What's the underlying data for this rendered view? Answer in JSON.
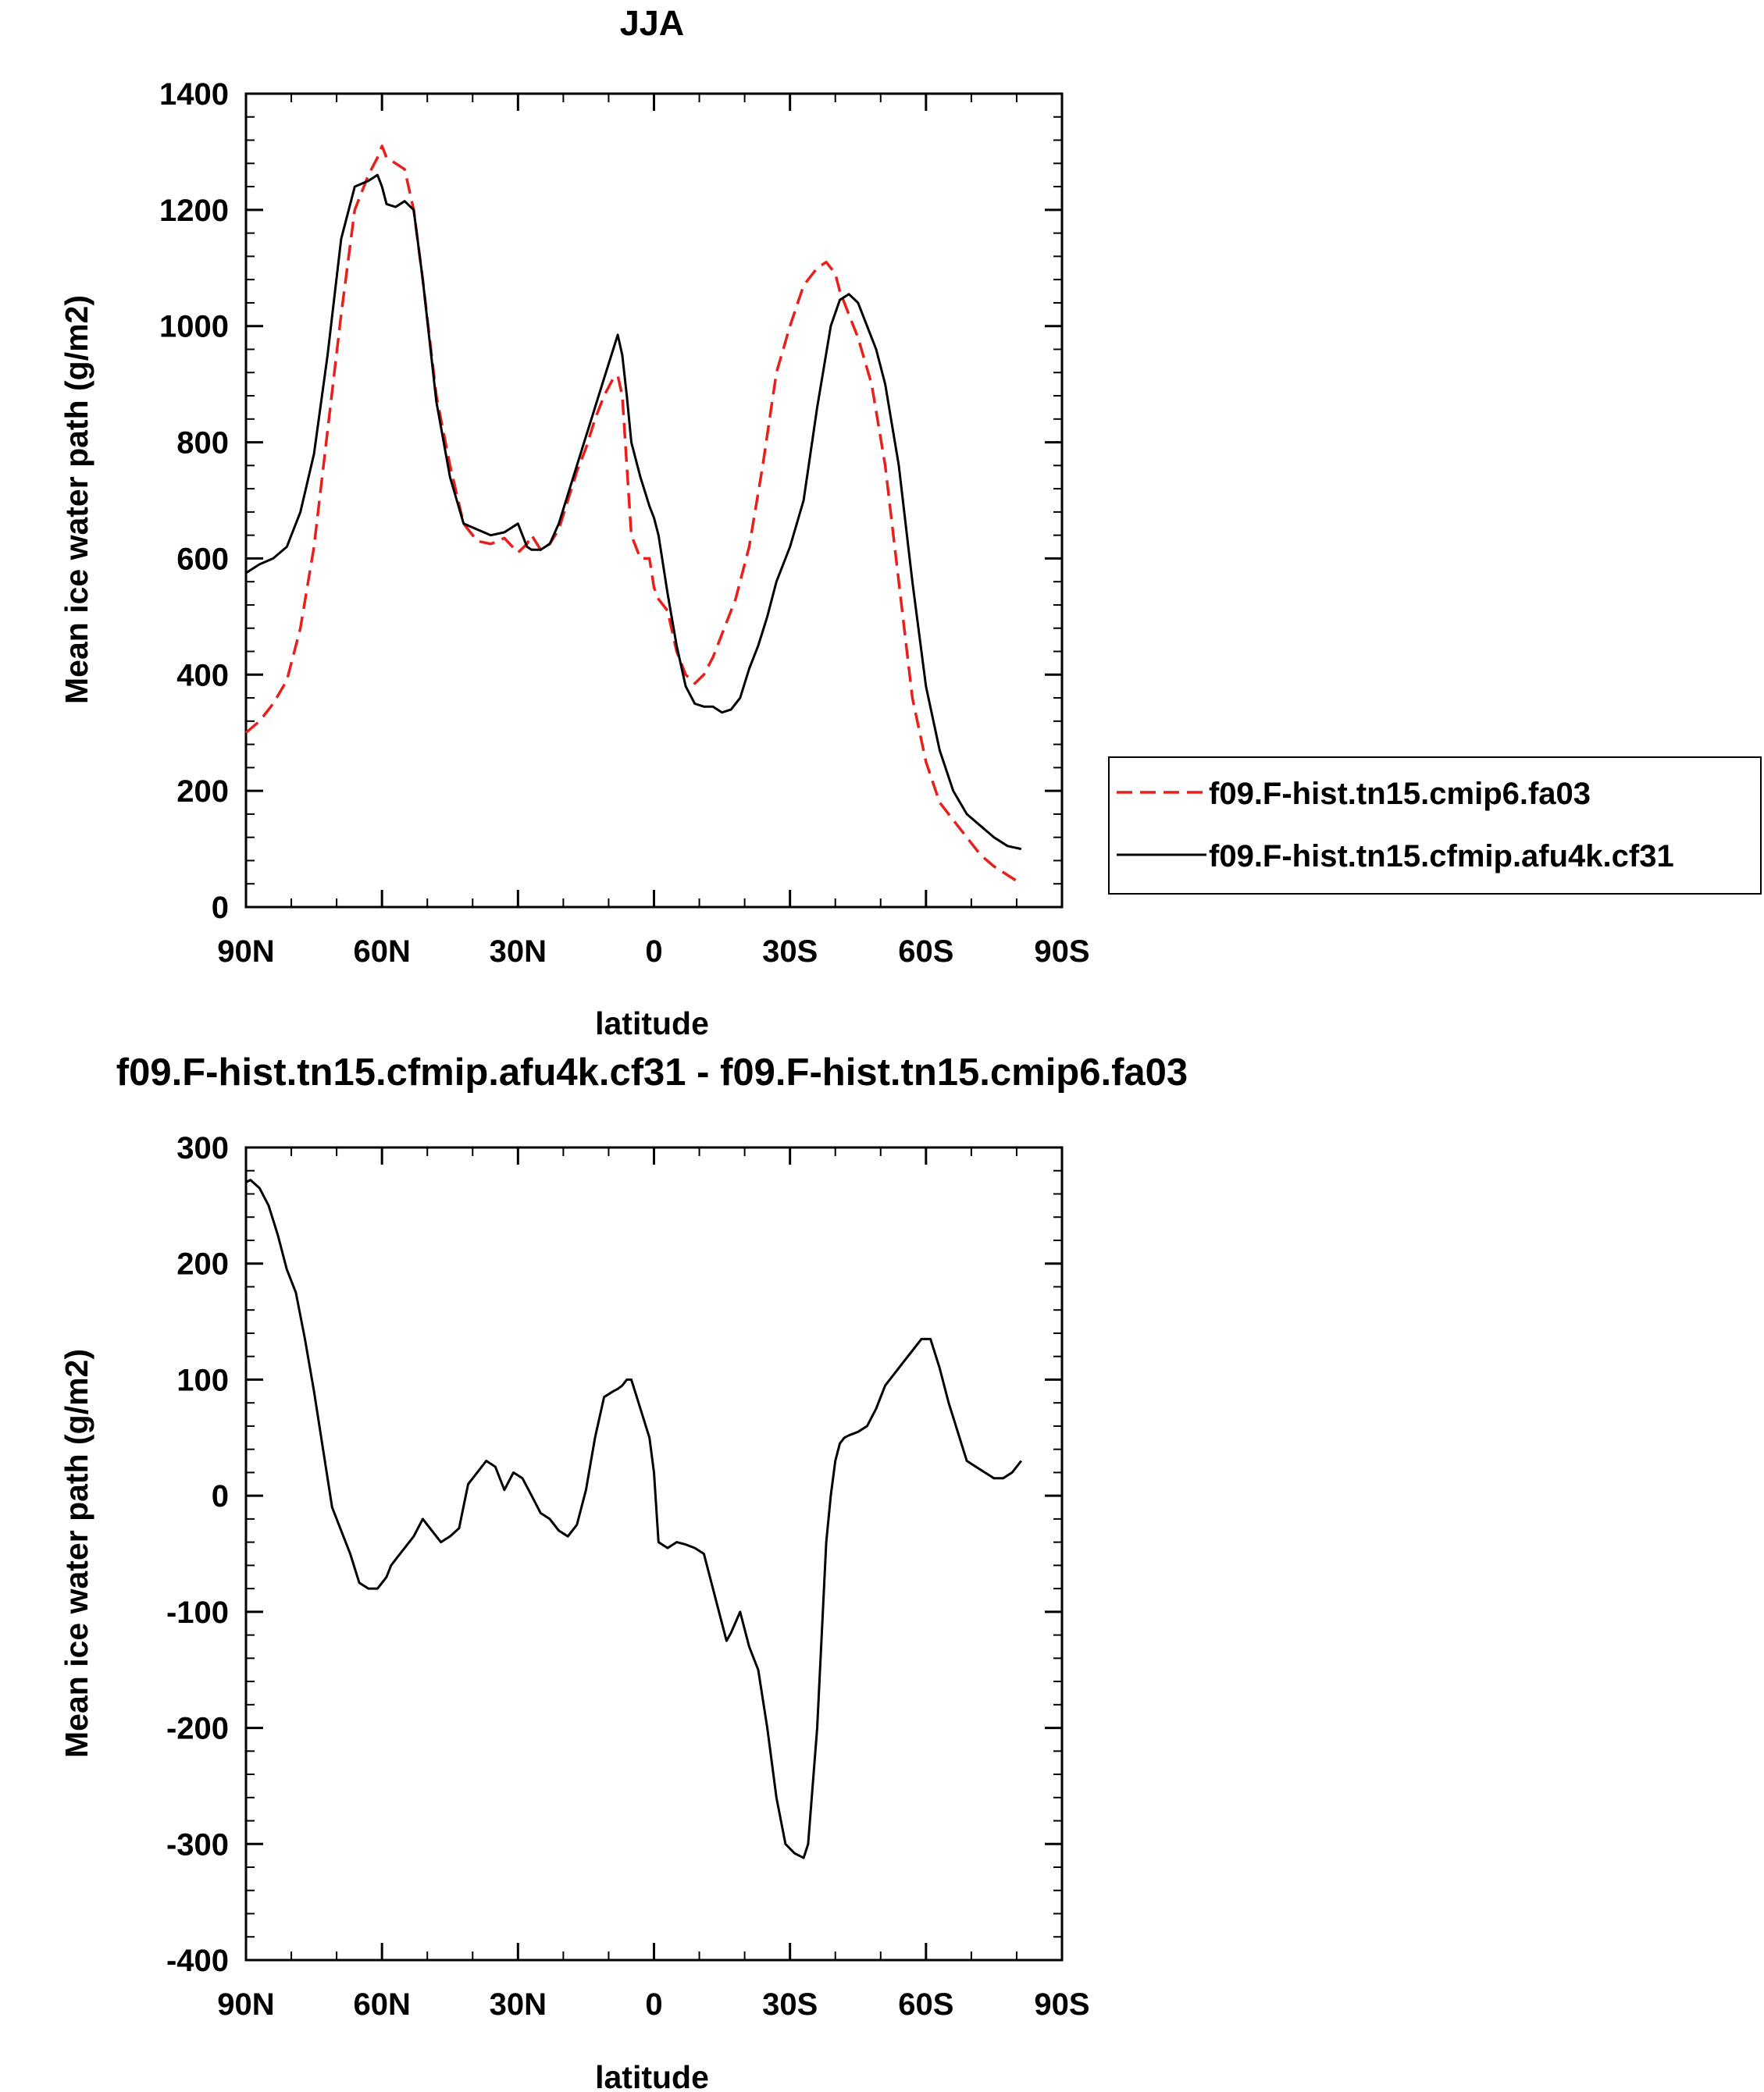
{
  "chart_data": [
    {
      "type": "line",
      "title": "JJA",
      "xlabel": "latitude",
      "ylabel": "Mean ice water path (g/m2)",
      "x_ticks": [
        {
          "value": 90,
          "label": "90N"
        },
        {
          "value": 60,
          "label": "60N"
        },
        {
          "value": 30,
          "label": "30N"
        },
        {
          "value": 0,
          "label": "0"
        },
        {
          "value": -30,
          "label": "30S"
        },
        {
          "value": -60,
          "label": "60S"
        },
        {
          "value": -90,
          "label": "90S"
        }
      ],
      "y_ticks": [
        {
          "value": 0,
          "label": "0"
        },
        {
          "value": 200,
          "label": "200"
        },
        {
          "value": 400,
          "label": "400"
        },
        {
          "value": 600,
          "label": "600"
        },
        {
          "value": 800,
          "label": "800"
        },
        {
          "value": 1000,
          "label": "1000"
        },
        {
          "value": 1200,
          "label": "1200"
        },
        {
          "value": 1400,
          "label": "1400"
        }
      ],
      "xlim": [
        90,
        -90
      ],
      "ylim": [
        0,
        1400
      ],
      "grid": false,
      "legend_position": "right",
      "series": [
        {
          "name": "f09.F-hist.tn15.cmip6.fa03",
          "color": "#e8201c",
          "dash": "dashed",
          "x": [
            90,
            87,
            84,
            81,
            78,
            75,
            72,
            69,
            66,
            63,
            61,
            60,
            59,
            57,
            55,
            53,
            51,
            48,
            45,
            42,
            39,
            36,
            33,
            30,
            28,
            27,
            25,
            23,
            21,
            19,
            17,
            15,
            13,
            11,
            9,
            8,
            7,
            6,
            5,
            3,
            1,
            0,
            -1,
            -3,
            -5,
            -7,
            -9,
            -11,
            -13,
            -15,
            -18,
            -21,
            -24,
            -27,
            -30,
            -33,
            -36,
            -38,
            -40,
            -41,
            -43,
            -45,
            -48,
            -51,
            -54,
            -57,
            -60,
            -63,
            -66,
            -69,
            -72,
            -75,
            -78,
            -81
          ],
          "y": [
            300,
            320,
            350,
            390,
            480,
            620,
            820,
            1020,
            1200,
            1260,
            1290,
            1310,
            1290,
            1280,
            1270,
            1200,
            1080,
            880,
            760,
            660,
            630,
            625,
            635,
            610,
            625,
            640,
            615,
            625,
            650,
            700,
            750,
            790,
            840,
            880,
            910,
            915,
            880,
            760,
            640,
            600,
            600,
            550,
            530,
            510,
            440,
            400,
            385,
            400,
            430,
            470,
            530,
            620,
            760,
            920,
            1000,
            1070,
            1100,
            1110,
            1090,
            1060,
            1020,
            980,
            900,
            760,
            560,
            360,
            250,
            180,
            150,
            120,
            90,
            70,
            55,
            40
          ]
        },
        {
          "name": "f09.F-hist.tn15.cfmip.afu4k.cf31",
          "color": "#000000",
          "dash": "solid",
          "x": [
            90,
            87,
            84,
            81,
            78,
            75,
            72,
            69,
            66,
            63,
            61,
            60,
            59,
            57,
            55,
            53,
            51,
            48,
            45,
            42,
            39,
            36,
            33,
            30,
            28,
            27,
            25,
            23,
            21,
            19,
            17,
            15,
            13,
            11,
            9,
            8,
            7,
            6,
            5,
            3,
            1,
            0,
            -1,
            -3,
            -5,
            -7,
            -9,
            -11,
            -13,
            -15,
            -17,
            -19,
            -21,
            -23,
            -25,
            -27,
            -30,
            -33,
            -36,
            -39,
            -41,
            -43,
            -45,
            -47,
            -49,
            -51,
            -54,
            -57,
            -60,
            -63,
            -66,
            -69,
            -72,
            -75,
            -78,
            -81
          ],
          "y": [
            575,
            590,
            600,
            620,
            680,
            780,
            950,
            1150,
            1240,
            1250,
            1260,
            1240,
            1210,
            1205,
            1215,
            1200,
            1080,
            870,
            740,
            660,
            650,
            640,
            645,
            660,
            620,
            615,
            615,
            625,
            660,
            710,
            760,
            810,
            860,
            910,
            960,
            985,
            950,
            880,
            800,
            740,
            690,
            670,
            640,
            540,
            450,
            380,
            350,
            345,
            345,
            335,
            340,
            360,
            410,
            450,
            500,
            560,
            620,
            700,
            860,
            1000,
            1045,
            1055,
            1040,
            1000,
            960,
            900,
            760,
            560,
            380,
            270,
            200,
            160,
            140,
            120,
            105,
            100
          ]
        }
      ]
    },
    {
      "type": "line",
      "title": "f09.F-hist.tn15.cfmip.afu4k.cf31 - f09.F-hist.tn15.cmip6.fa03",
      "xlabel": "latitude",
      "ylabel": "Mean ice water path (g/m2)",
      "x_ticks": [
        {
          "value": 90,
          "label": "90N"
        },
        {
          "value": 60,
          "label": "60N"
        },
        {
          "value": 30,
          "label": "30N"
        },
        {
          "value": 0,
          "label": "0"
        },
        {
          "value": -30,
          "label": "30S"
        },
        {
          "value": -60,
          "label": "60S"
        },
        {
          "value": -90,
          "label": "90S"
        }
      ],
      "y_ticks": [
        {
          "value": -400,
          "label": "-400"
        },
        {
          "value": -300,
          "label": "-300"
        },
        {
          "value": -200,
          "label": "-200"
        },
        {
          "value": -100,
          "label": "-100"
        },
        {
          "value": 0,
          "label": "0"
        },
        {
          "value": 100,
          "label": "100"
        },
        {
          "value": 200,
          "label": "200"
        },
        {
          "value": 300,
          "label": "300"
        }
      ],
      "xlim": [
        90,
        -90
      ],
      "ylim": [
        -400,
        300
      ],
      "grid": false,
      "series": [
        {
          "color": "#000000",
          "dash": "solid",
          "x": [
            90,
            89,
            87,
            85,
            83,
            81,
            79,
            77,
            75,
            73,
            71,
            69,
            67,
            65,
            63,
            61,
            60,
            59,
            58,
            57,
            55,
            53,
            51,
            49,
            47,
            45,
            43,
            41,
            39,
            37,
            35,
            34,
            33,
            31,
            29,
            27,
            25,
            23,
            21,
            19,
            17,
            15,
            13,
            11,
            9,
            8,
            7,
            6,
            5,
            3,
            1,
            0,
            -1,
            -3,
            -5,
            -7,
            -9,
            -11,
            -13,
            -15,
            -16,
            -17,
            -19,
            -21,
            -23,
            -25,
            -27,
            -29,
            -31,
            -33,
            -34,
            -35,
            -36,
            -37,
            -38,
            -39,
            -40,
            -41,
            -42,
            -43,
            -45,
            -47,
            -49,
            -51,
            -53,
            -55,
            -57,
            -59,
            -61,
            -63,
            -64,
            -65,
            -67,
            -69,
            -71,
            -73,
            -75,
            -77,
            -79,
            -81
          ],
          "y": [
            270,
            272,
            265,
            250,
            225,
            195,
            175,
            135,
            90,
            40,
            -10,
            -30,
            -50,
            -75,
            -80,
            -80,
            -75,
            -70,
            -60,
            -55,
            -45,
            -35,
            -20,
            -30,
            -40,
            -35,
            -28,
            10,
            20,
            30,
            25,
            15,
            5,
            20,
            15,
            0,
            -15,
            -20,
            -30,
            -35,
            -25,
            5,
            50,
            85,
            90,
            92,
            95,
            100,
            100,
            75,
            50,
            20,
            -40,
            -45,
            -40,
            -42,
            -45,
            -50,
            -80,
            -110,
            -125,
            -118,
            -100,
            -130,
            -150,
            -200,
            -260,
            -300,
            -308,
            -312,
            -300,
            -250,
            -200,
            -120,
            -40,
            0,
            30,
            45,
            50,
            52,
            55,
            60,
            75,
            95,
            105,
            115,
            125,
            135,
            135,
            110,
            95,
            80,
            55,
            30,
            25,
            20,
            15,
            15,
            20,
            30
          ]
        }
      ]
    }
  ]
}
